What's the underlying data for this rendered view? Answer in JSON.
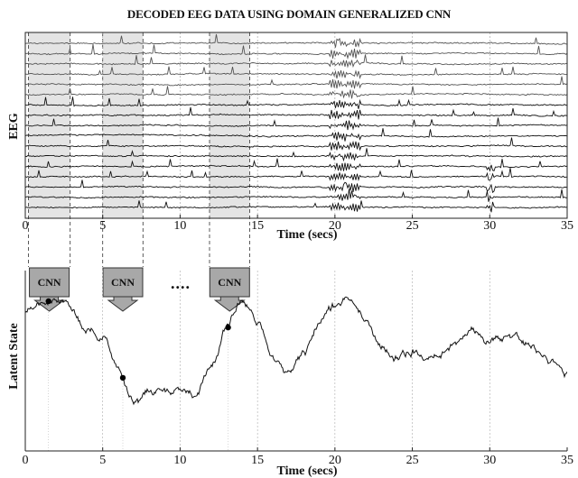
{
  "title": "DECODED EEG DATA USING DOMAIN GENERALIZED CNN",
  "eeg_panel": {
    "ylabel": "EEG",
    "xlabel": "Time (secs)",
    "x_ticks": [
      "0",
      "5",
      "10",
      "15",
      "20",
      "25",
      "30",
      "35"
    ],
    "channel_count": 17,
    "windows_secs": [
      [
        0.2,
        2.9
      ],
      [
        5.0,
        7.6
      ],
      [
        11.9,
        14.5
      ]
    ]
  },
  "cnn_blocks": {
    "label": "CNN",
    "ellipsis": "....",
    "fill_color": "#a8a8a8"
  },
  "latent_panel": {
    "ylabel": "Latent State",
    "xlabel": "Time (secs)",
    "x_ticks": [
      "0",
      "5",
      "10",
      "15",
      "20",
      "25",
      "30",
      "35"
    ]
  },
  "chart_data": {
    "type": "line",
    "title": "",
    "xlabel": "Time (secs)",
    "ylabel": "Latent State",
    "xlim": [
      0,
      35
    ],
    "x": [
      0,
      1,
      2,
      3,
      4,
      5,
      6,
      7,
      8,
      9,
      10,
      11,
      12,
      13,
      14,
      15,
      16,
      17,
      18,
      19,
      20,
      21,
      22,
      23,
      24,
      25,
      26,
      27,
      28,
      29,
      30,
      31,
      32,
      33,
      34,
      35
    ],
    "series": [
      {
        "values": [
          0.78,
          0.82,
          0.84,
          0.78,
          0.68,
          0.62,
          0.44,
          0.28,
          0.32,
          0.36,
          0.34,
          0.3,
          0.46,
          0.68,
          0.84,
          0.72,
          0.5,
          0.44,
          0.54,
          0.7,
          0.8,
          0.86,
          0.74,
          0.58,
          0.52,
          0.56,
          0.54,
          0.56,
          0.62,
          0.66,
          0.62,
          0.64,
          0.62,
          0.56,
          0.48,
          0.4
        ]
      }
    ],
    "markers_x": [
      1.5,
      6.3,
      13.1
    ],
    "grid": "vertical"
  }
}
